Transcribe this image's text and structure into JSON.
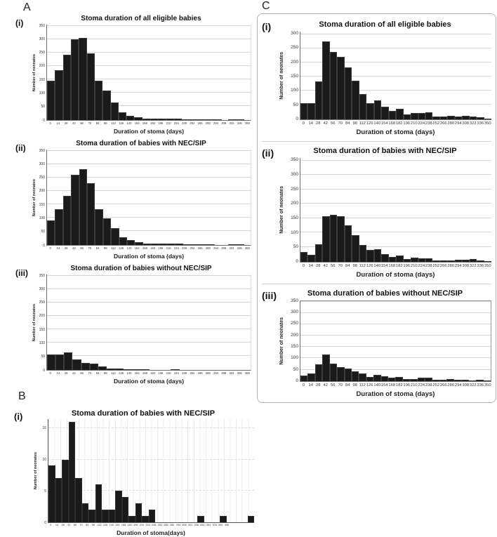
{
  "figure": {
    "panels": {
      "a": {
        "letter": "A",
        "sub": [
          "(i)",
          "(ii)",
          "(iii)"
        ]
      },
      "b": {
        "letter": "B",
        "sub": [
          "(i)"
        ]
      },
      "c": {
        "letter": "C",
        "sub": [
          "(i)",
          "(ii)",
          "(iii)"
        ]
      }
    }
  },
  "chart_data": [
    {
      "id": "A(i)",
      "type": "bar",
      "title": "Stoma duration of all eligible babies",
      "ylabel": "Number of neonates",
      "xlabel": "Duration of stoma (days)",
      "ymax": 355,
      "yticks": [
        0,
        50,
        100,
        150,
        200,
        250,
        300,
        350
      ],
      "grid": "solid",
      "x_labels": [
        "0",
        "14",
        "28",
        "42",
        "56",
        "70",
        "84",
        "98",
        "112",
        "126",
        "140",
        "154",
        "168",
        "182",
        "196",
        "210",
        "224",
        "238",
        "252",
        "266",
        "280",
        "294",
        "308",
        "322",
        "336",
        "350"
      ],
      "values": [
        146,
        185,
        241,
        299,
        304,
        248,
        144,
        109,
        63,
        27,
        15,
        10,
        5,
        3,
        3,
        5,
        3,
        2,
        1,
        1,
        1,
        1,
        0,
        1,
        2,
        0
      ]
    },
    {
      "id": "A(ii)",
      "type": "bar",
      "title": "Stoma duration of babies with NEC/SIP",
      "ylabel": "Number of neonates",
      "xlabel": "Duration of stoma (days)",
      "ymax": 355,
      "yticks": [
        0,
        50,
        100,
        150,
        200,
        250,
        300,
        350
      ],
      "grid": "solid",
      "x_labels": [
        "0",
        "14",
        "28",
        "42",
        "56",
        "70",
        "84",
        "98",
        "112",
        "126",
        "140",
        "154",
        "168",
        "182",
        "196",
        "210",
        "224",
        "238",
        "252",
        "266",
        "280",
        "294",
        "308",
        "322",
        "336",
        "350"
      ],
      "values": [
        91,
        132,
        182,
        261,
        282,
        228,
        132,
        99,
        62,
        28,
        16,
        9,
        4,
        3,
        3,
        5,
        4,
        2,
        1,
        1,
        1,
        0,
        0,
        2,
        2,
        0
      ]
    },
    {
      "id": "A(iii)",
      "type": "bar",
      "title": "Stoma duration of babies without NEC/SIP",
      "ylabel": "Number of neonates",
      "xlabel": "Duration of stoma (days)",
      "ymax": 355,
      "yticks": [
        0,
        50,
        100,
        150,
        200,
        250,
        300,
        350
      ],
      "grid": "solid",
      "x_labels": [
        "0",
        "14",
        "28",
        "42",
        "56",
        "70",
        "84",
        "98",
        "112",
        "126",
        "140",
        "154",
        "168",
        "182",
        "196",
        "210",
        "224",
        "238",
        "252",
        "266",
        "280",
        "294",
        "308",
        "322",
        "336",
        "350"
      ],
      "values": [
        56,
        57,
        63,
        38,
        24,
        23,
        11,
        5,
        3,
        2,
        2,
        2,
        0,
        0,
        0,
        2,
        0,
        0,
        0,
        0,
        0,
        0,
        0,
        0,
        0,
        0
      ]
    },
    {
      "id": "B(i)",
      "type": "bar",
      "title": "Stoma duration of babies with NEC/SIP",
      "ylabel": "Number of neonates",
      "xlabel": "Duration of stoma(days)",
      "ymax": 16.5,
      "yticks": [
        0,
        5,
        10,
        15
      ],
      "grid": "dashed",
      "x_labels": [
        "0",
        "14",
        "28",
        "42",
        "56",
        "70",
        "84",
        "98",
        "112",
        "126",
        "140",
        "154",
        "168",
        "182",
        "196",
        "210",
        "224",
        "238",
        "252",
        "266",
        "280",
        "294",
        "308",
        "322",
        "336",
        "350",
        "364",
        "378",
        "392",
        "406",
        "",
        "",
        "",
        ""
      ],
      "values": [
        9,
        7,
        10,
        16,
        7,
        3,
        2,
        6,
        2,
        2,
        5,
        4,
        1,
        3,
        1,
        2,
        0,
        0,
        0,
        0,
        0,
        0,
        0,
        0,
        1,
        0,
        0,
        0,
        1,
        0,
        0,
        0,
        0,
        1
      ]
    },
    {
      "id": "C(i)",
      "type": "bar",
      "title": "Stoma duration of all eligible babies",
      "ylabel": "Number of neonates",
      "xlabel": "Duration of stoma (days)",
      "ymax": 310,
      "yticks": [
        0,
        50,
        100,
        150,
        200,
        250,
        300
      ],
      "grid": "solid",
      "x_labels": [
        "0",
        "14",
        "28",
        "42",
        "56",
        "70",
        "84",
        "98",
        "112",
        "126",
        "140",
        "154",
        "168",
        "182",
        "196",
        "210",
        "224",
        "238",
        "252",
        "266",
        "280",
        "294",
        "308",
        "322",
        "336",
        "350"
      ],
      "values": [
        56,
        56,
        133,
        275,
        238,
        219,
        182,
        135,
        89,
        56,
        67,
        44,
        28,
        36,
        17,
        22,
        22,
        23,
        8,
        9,
        11,
        10,
        11,
        8,
        6,
        2
      ]
    },
    {
      "id": "C(ii)",
      "type": "bar",
      "title": "Stoma duration of babies with NEC/SIP",
      "ylabel": "Number of neonates",
      "xlabel": "Duration of stoma (days)",
      "ymax": 360,
      "yticks": [
        0,
        50,
        100,
        150,
        200,
        250,
        300,
        350
      ],
      "grid": "solid",
      "x_labels": [
        "0",
        "14",
        "28",
        "42",
        "56",
        "70",
        "84",
        "98",
        "112",
        "126",
        "140",
        "154",
        "168",
        "182",
        "196",
        "210",
        "224",
        "238",
        "252",
        "266",
        "280",
        "294",
        "308",
        "322",
        "336",
        "350"
      ],
      "values": [
        32,
        23,
        61,
        157,
        161,
        156,
        125,
        92,
        57,
        40,
        43,
        27,
        16,
        20,
        9,
        14,
        10,
        10,
        5,
        5,
        4,
        6,
        7,
        8,
        3,
        1
      ]
    },
    {
      "id": "C(iii)",
      "type": "bar",
      "title": "Stoma duration of babies without NEC/SIP",
      "ylabel": "Number of neonates",
      "xlabel": "Duration of stoma (days)",
      "ymax": 355,
      "yticks": [
        0,
        50,
        100,
        150,
        200,
        250,
        300,
        350
      ],
      "grid": "solid",
      "x_labels": [
        "0",
        "14",
        "28",
        "42",
        "56",
        "70",
        "84",
        "98",
        "112",
        "126",
        "140",
        "154",
        "168",
        "182",
        "196",
        "210",
        "224",
        "238",
        "252",
        "266",
        "280",
        "294",
        "308",
        "322",
        "336",
        "350"
      ],
      "values": [
        25,
        34,
        72,
        118,
        77,
        61,
        56,
        43,
        32,
        18,
        26,
        20,
        14,
        17,
        8,
        8,
        13,
        14,
        5,
        5,
        8,
        5,
        4,
        2,
        4,
        3
      ]
    }
  ]
}
